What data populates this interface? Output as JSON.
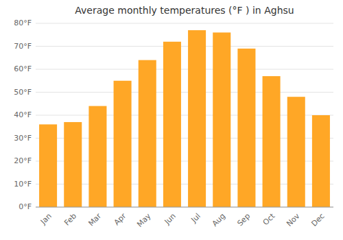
{
  "chart_data": {
    "type": "bar",
    "title": "Average monthly temperatures (°F ) in Aghsu",
    "categories": [
      "Jan",
      "Feb",
      "Mar",
      "Apr",
      "May",
      "Jun",
      "Jul",
      "Aug",
      "Sep",
      "Oct",
      "Nov",
      "Dec"
    ],
    "values": [
      36,
      37,
      44,
      55,
      64,
      72,
      77,
      76,
      69,
      57,
      48,
      40
    ],
    "color": "#FFA726",
    "ylim": [
      0,
      80
    ],
    "yticks": [
      {
        "value": 0,
        "label": "0°F"
      },
      {
        "value": 10,
        "label": "10°F"
      },
      {
        "value": 20,
        "label": "20°F"
      },
      {
        "value": 30,
        "label": "30°F"
      },
      {
        "value": 40,
        "label": "40°F"
      },
      {
        "value": 50,
        "label": "50°F"
      },
      {
        "value": 60,
        "label": "60°F"
      },
      {
        "value": 70,
        "label": "70°F"
      },
      {
        "value": 80,
        "label": "80°F"
      }
    ],
    "grid": true
  }
}
